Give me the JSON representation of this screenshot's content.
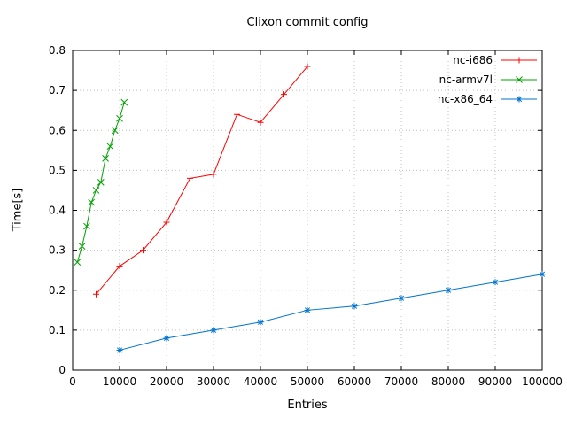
{
  "chart_data": {
    "type": "line",
    "title": "Clixon commit config",
    "xlabel": "Entries",
    "ylabel": "Time[s]",
    "xlim": [
      0,
      100000
    ],
    "ylim": [
      0,
      0.8
    ],
    "xticks": [
      0,
      10000,
      20000,
      30000,
      40000,
      50000,
      60000,
      70000,
      80000,
      90000,
      100000
    ],
    "xtick_labels": [
      "0",
      "10000",
      "20000",
      "30000",
      "40000",
      "50000",
      "60000",
      "70000",
      "80000",
      "90000",
      "100000"
    ],
    "yticks": [
      0,
      0.1,
      0.2,
      0.3,
      0.4,
      0.5,
      0.6,
      0.7,
      0.8
    ],
    "ytick_labels": [
      "0",
      "0.1",
      "0.2",
      "0.3",
      "0.4",
      "0.5",
      "0.6",
      "0.7",
      "0.8"
    ],
    "grid": true,
    "grid_color": "#c0c0c0",
    "legend_position": "top-right",
    "series": [
      {
        "name": "nc-i686",
        "color": "#ff0000",
        "marker": "plus",
        "x": [
          5000,
          10000,
          15000,
          20000,
          25000,
          30000,
          35000,
          40000,
          45000,
          50000
        ],
        "y": [
          0.19,
          0.26,
          0.3,
          0.37,
          0.48,
          0.49,
          0.64,
          0.62,
          0.69,
          0.76
        ]
      },
      {
        "name": "nc-armv7l",
        "color": "#00a000",
        "marker": "x",
        "x": [
          1000,
          2000,
          3000,
          4000,
          5000,
          6000,
          7000,
          8000,
          9000,
          10000,
          11000
        ],
        "y": [
          0.27,
          0.31,
          0.36,
          0.42,
          0.45,
          0.47,
          0.53,
          0.56,
          0.6,
          0.63,
          0.67
        ]
      },
      {
        "name": "nc-x86_64",
        "color": "#0073cf",
        "marker": "star",
        "x": [
          10000,
          20000,
          30000,
          40000,
          50000,
          60000,
          70000,
          80000,
          90000,
          100000
        ],
        "y": [
          0.05,
          0.08,
          0.1,
          0.12,
          0.15,
          0.16,
          0.18,
          0.2,
          0.22,
          0.24
        ]
      }
    ]
  }
}
